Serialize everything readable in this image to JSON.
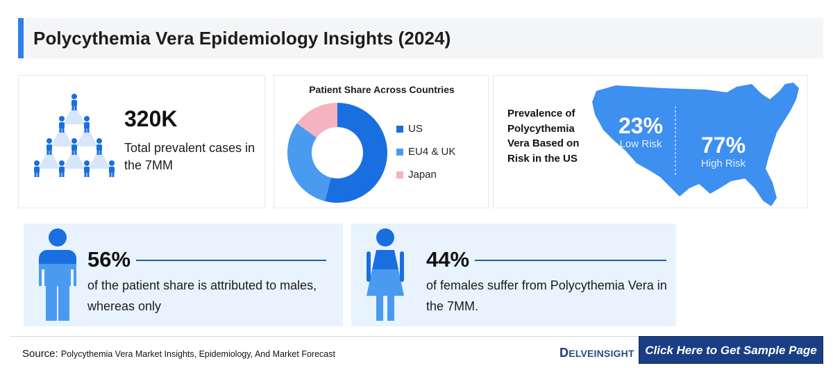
{
  "title": "Polycythemia Vera Epidemiology Insights (2024)",
  "prevalence": {
    "value": "320K",
    "label": "Total prevalent cases in the 7MM",
    "icon": "people-pyramid-icon"
  },
  "patient_share": {
    "title": "Patient Share Across Countries",
    "chart_data": {
      "type": "pie",
      "title": "Patient Share Across Countries",
      "categories": [
        "US",
        "EU4 & UK",
        "Japan"
      ],
      "values": [
        54,
        31,
        15
      ],
      "colors": [
        "#1a6fe0",
        "#4a9bf0",
        "#f5b3bd"
      ],
      "legend": "right"
    },
    "legend": [
      {
        "label": "US",
        "color": "#1a6fe0"
      },
      {
        "label": "EU4 & UK",
        "color": "#4a9bf0"
      },
      {
        "label": "Japan",
        "color": "#f5b3bd"
      }
    ]
  },
  "risk": {
    "label": "Prevalence of Polycythemia Vera Based on Risk in the US",
    "low": {
      "pct": "23%",
      "label": "Low Risk"
    },
    "high": {
      "pct": "77%",
      "label": "High Risk"
    },
    "map_color": "#3d8ff0",
    "icon": "us-map-icon"
  },
  "males": {
    "pct": "56%",
    "text": "of the patient share is attributed to males, whereas only",
    "icon": "male-figure-icon"
  },
  "females": {
    "pct": "44%",
    "text": "of females suffer from Polycythemia Vera in the 7MM.",
    "icon": "female-figure-icon"
  },
  "footer": {
    "source_label": "Source:",
    "source_text": "Polycythemia Vera Market Insights, Epidemiology, And Market Forecast",
    "brand_initial": "D",
    "brand_rest": "ELVEINSIGHT",
    "cta": "Click Here to Get Sample Page"
  },
  "colors": {
    "accent": "#2f7fe8",
    "card_bg": "#e8f3fd",
    "cta_bg": "#1a3e83"
  }
}
